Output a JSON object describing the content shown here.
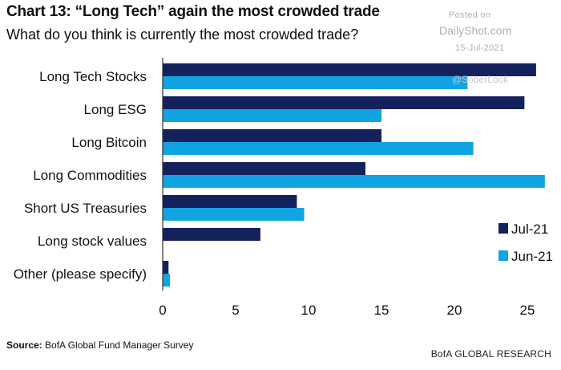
{
  "header": {
    "title": "Chart 13: “Long Tech” again the most crowded trade",
    "subtitle": "What do you think is currently the most crowded trade?"
  },
  "watermark": {
    "posted": "Posted on",
    "site": "DailyShot.com",
    "date": "15-Jul-2021",
    "handle": "@SoberLook"
  },
  "footer": {
    "source_label": "Source:",
    "source_text": "BofA Global Fund Manager Survey",
    "brand": "BofA GLOBAL RESEARCH"
  },
  "colors": {
    "jul": "#14215c",
    "jun": "#12a4e2",
    "axis": "#333333"
  },
  "chart_data": {
    "type": "bar",
    "orientation": "horizontal",
    "categories": [
      "Long Tech Stocks",
      "Long ESG",
      "Long Bitcoin",
      "Long Commodities",
      "Short US Treasuries",
      "Long stock values",
      "Other (please specify)"
    ],
    "series": [
      {
        "name": "Jul-21",
        "values": [
          25.6,
          24.8,
          15.0,
          13.9,
          9.2,
          6.7,
          0.4
        ]
      },
      {
        "name": "Jun-21",
        "values": [
          20.9,
          15.0,
          21.3,
          26.2,
          9.7,
          null,
          0.5
        ]
      }
    ],
    "xlim": [
      0,
      26.2
    ],
    "xticks": [
      0,
      5,
      10,
      15,
      20,
      25
    ],
    "legend_position": "right",
    "grid": false
  }
}
